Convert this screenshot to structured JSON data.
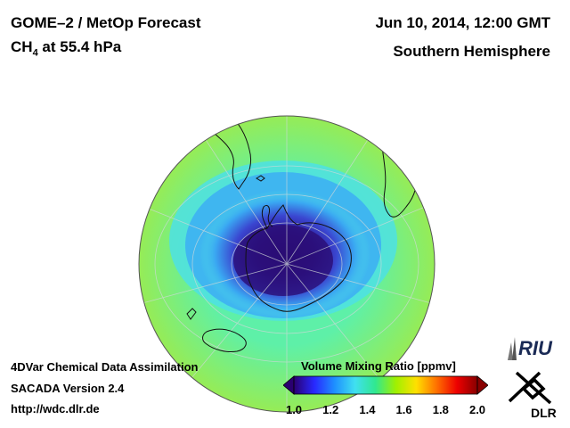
{
  "header": {
    "product": "GOME–2 / MetOp Forecast",
    "species_prefix": "CH",
    "species_sub": "4",
    "species_suffix": " at 55.4 hPa",
    "datetime": "Jun 10, 2014, 12:00 GMT",
    "region": "Southern Hemisphere"
  },
  "footer": {
    "method": "4DVar Chemical Data Assimilation",
    "version": "SACADA Version 2.4",
    "url": "http://wdc.dlr.de"
  },
  "colorbar": {
    "title": "Volume Mixing Ratio [ppmv]",
    "min": 1.0,
    "max": 2.0,
    "ticks": [
      "1.0",
      "1.2",
      "1.4",
      "1.6",
      "1.8",
      "2.0"
    ],
    "colors": [
      "#2a0070",
      "#2828ff",
      "#1e90ff",
      "#40e0f0",
      "#30e890",
      "#a0f000",
      "#ffe000",
      "#ff7000",
      "#ee0000",
      "#880000"
    ]
  },
  "map": {
    "projection": "orthographic",
    "field_colors": {
      "core": "#2b0c74",
      "vortex": "#3a46d0",
      "inner_ring": "#3aa8f2",
      "ring": "#4ee0e4",
      "mid": "#5ef0a8",
      "outer": "#96ec56"
    }
  },
  "logos": {
    "riu": "RIU",
    "dlr": "DLR"
  }
}
